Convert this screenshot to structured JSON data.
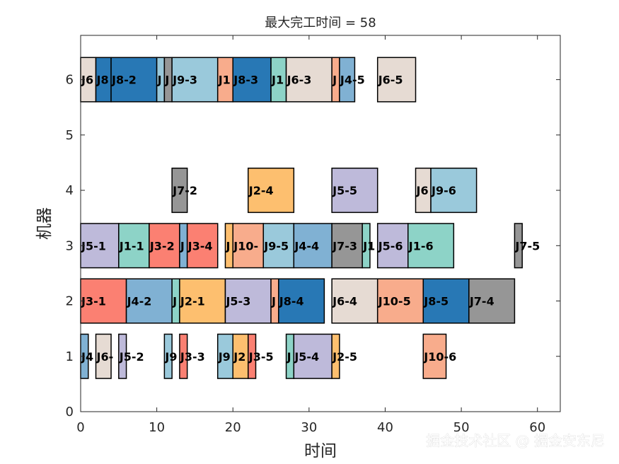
{
  "chart_data": {
    "type": "gantt",
    "title": "最大完工时间 = 58",
    "xlabel": "时间",
    "ylabel": "机器",
    "xlim": [
      0,
      63
    ],
    "ylim": [
      0,
      6.8
    ],
    "xticks": [
      0,
      10,
      20,
      30,
      40,
      50,
      60
    ],
    "yticks": [
      0,
      1,
      2,
      3,
      4,
      5,
      6
    ],
    "grid": false,
    "job_colors": {
      "J1": "#8DD3C7",
      "J2": "#FDBF6F",
      "J3": "#FB8072",
      "J4": "#80B1D3",
      "J5": "#BEBADA",
      "J6": "#E6DBD3",
      "J7": "#969696",
      "J8": "#2878B5",
      "J9": "#9AC9DB",
      "J10": "#F8AC8C"
    },
    "tasks": [
      {
        "machine": 1,
        "job": "J4",
        "label": "J4",
        "start": 0,
        "end": 1
      },
      {
        "machine": 1,
        "job": "J6",
        "label": "J6-",
        "start": 2,
        "end": 4
      },
      {
        "machine": 1,
        "job": "J5",
        "label": "J5-2",
        "start": 5,
        "end": 6
      },
      {
        "machine": 1,
        "job": "J9",
        "label": "J9",
        "start": 11,
        "end": 12
      },
      {
        "machine": 1,
        "job": "J3",
        "label": "J3-3",
        "start": 13,
        "end": 14
      },
      {
        "machine": 1,
        "job": "J9",
        "label": "J9",
        "start": 18,
        "end": 20
      },
      {
        "machine": 1,
        "job": "J2",
        "label": "J2",
        "start": 20,
        "end": 22
      },
      {
        "machine": 1,
        "job": "J3",
        "label": "J3-5",
        "start": 22,
        "end": 23
      },
      {
        "machine": 1,
        "job": "J1",
        "label": "J",
        "start": 27,
        "end": 28
      },
      {
        "machine": 1,
        "job": "J5",
        "label": "J5-4",
        "start": 28,
        "end": 33
      },
      {
        "machine": 1,
        "job": "J2",
        "label": "J2-5",
        "start": 33,
        "end": 34
      },
      {
        "machine": 1,
        "job": "J10",
        "label": "J10-6",
        "start": 45,
        "end": 48
      },
      {
        "machine": 2,
        "job": "J3",
        "label": "J3-1",
        "start": 0,
        "end": 6
      },
      {
        "machine": 2,
        "job": "J4",
        "label": "J4-2",
        "start": 6,
        "end": 12
      },
      {
        "machine": 2,
        "job": "J1",
        "label": "J",
        "start": 12,
        "end": 13
      },
      {
        "machine": 2,
        "job": "J2",
        "label": "J2-1",
        "start": 13,
        "end": 19
      },
      {
        "machine": 2,
        "job": "J5",
        "label": "J5-3",
        "start": 19,
        "end": 25
      },
      {
        "machine": 2,
        "job": "J10",
        "label": "J",
        "start": 25,
        "end": 26
      },
      {
        "machine": 2,
        "job": "J8",
        "label": "J8-4",
        "start": 26,
        "end": 32
      },
      {
        "machine": 2,
        "job": "J6",
        "label": "J6-4",
        "start": 33,
        "end": 39
      },
      {
        "machine": 2,
        "job": "J10",
        "label": "J10-5",
        "start": 39,
        "end": 45
      },
      {
        "machine": 2,
        "job": "J8",
        "label": "J8-5",
        "start": 45,
        "end": 51
      },
      {
        "machine": 2,
        "job": "J7",
        "label": "J7-4",
        "start": 51,
        "end": 57
      },
      {
        "machine": 3,
        "job": "J5",
        "label": "J5-1",
        "start": 0,
        "end": 5
      },
      {
        "machine": 3,
        "job": "J1",
        "label": "J1-1",
        "start": 5,
        "end": 9
      },
      {
        "machine": 3,
        "job": "J3",
        "label": "J3-2",
        "start": 9,
        "end": 13
      },
      {
        "machine": 3,
        "job": "J4",
        "label": "J",
        "start": 13,
        "end": 14
      },
      {
        "machine": 3,
        "job": "J3",
        "label": "J3-4",
        "start": 14,
        "end": 18
      },
      {
        "machine": 3,
        "job": "J2",
        "label": "J",
        "start": 19,
        "end": 20
      },
      {
        "machine": 3,
        "job": "J10",
        "label": "J10-",
        "start": 20,
        "end": 24
      },
      {
        "machine": 3,
        "job": "J9",
        "label": "J9-5",
        "start": 24,
        "end": 28
      },
      {
        "machine": 3,
        "job": "J4",
        "label": "J4-4",
        "start": 28,
        "end": 33
      },
      {
        "machine": 3,
        "job": "J7",
        "label": "J7-3",
        "start": 33,
        "end": 37
      },
      {
        "machine": 3,
        "job": "J1",
        "label": "J1",
        "start": 37,
        "end": 38
      },
      {
        "machine": 3,
        "job": "J5",
        "label": "J5-6",
        "start": 39,
        "end": 43
      },
      {
        "machine": 3,
        "job": "J1",
        "label": "J1-6",
        "start": 43,
        "end": 49
      },
      {
        "machine": 3,
        "job": "J7",
        "label": "J7-5",
        "start": 57,
        "end": 58
      },
      {
        "machine": 4,
        "job": "J7",
        "label": "J7-2",
        "start": 12,
        "end": 14
      },
      {
        "machine": 4,
        "job": "J2",
        "label": "J2-4",
        "start": 22,
        "end": 28
      },
      {
        "machine": 4,
        "job": "J5",
        "label": "J5-5",
        "start": 33,
        "end": 39
      },
      {
        "machine": 4,
        "job": "J6",
        "label": "J6",
        "start": 44,
        "end": 46
      },
      {
        "machine": 4,
        "job": "J9",
        "label": "J9-6",
        "start": 46,
        "end": 52
      },
      {
        "machine": 6,
        "job": "J6",
        "label": "J6",
        "start": 0,
        "end": 2
      },
      {
        "machine": 6,
        "job": "J8",
        "label": "J8",
        "start": 2,
        "end": 4
      },
      {
        "machine": 6,
        "job": "J8",
        "label": "J8-2",
        "start": 4,
        "end": 10
      },
      {
        "machine": 6,
        "job": "J9",
        "label": "J",
        "start": 10,
        "end": 11
      },
      {
        "machine": 6,
        "job": "J7",
        "label": "J",
        "start": 11,
        "end": 12
      },
      {
        "machine": 6,
        "job": "J9",
        "label": "J9-3",
        "start": 12,
        "end": 18
      },
      {
        "machine": 6,
        "job": "J10",
        "label": "J1",
        "start": 18,
        "end": 20
      },
      {
        "machine": 6,
        "job": "J8",
        "label": "J8-3",
        "start": 20,
        "end": 25
      },
      {
        "machine": 6,
        "job": "J1",
        "label": "J1",
        "start": 25,
        "end": 27
      },
      {
        "machine": 6,
        "job": "J6",
        "label": "J6-3",
        "start": 27,
        "end": 33
      },
      {
        "machine": 6,
        "job": "J10",
        "label": "J",
        "start": 33,
        "end": 34
      },
      {
        "machine": 6,
        "job": "J4",
        "label": "J4-5",
        "start": 34,
        "end": 36
      },
      {
        "machine": 6,
        "job": "J6",
        "label": "J6-5",
        "start": 39,
        "end": 44
      }
    ]
  },
  "watermark": "掘金技术社区 @ 掘金安东尼"
}
